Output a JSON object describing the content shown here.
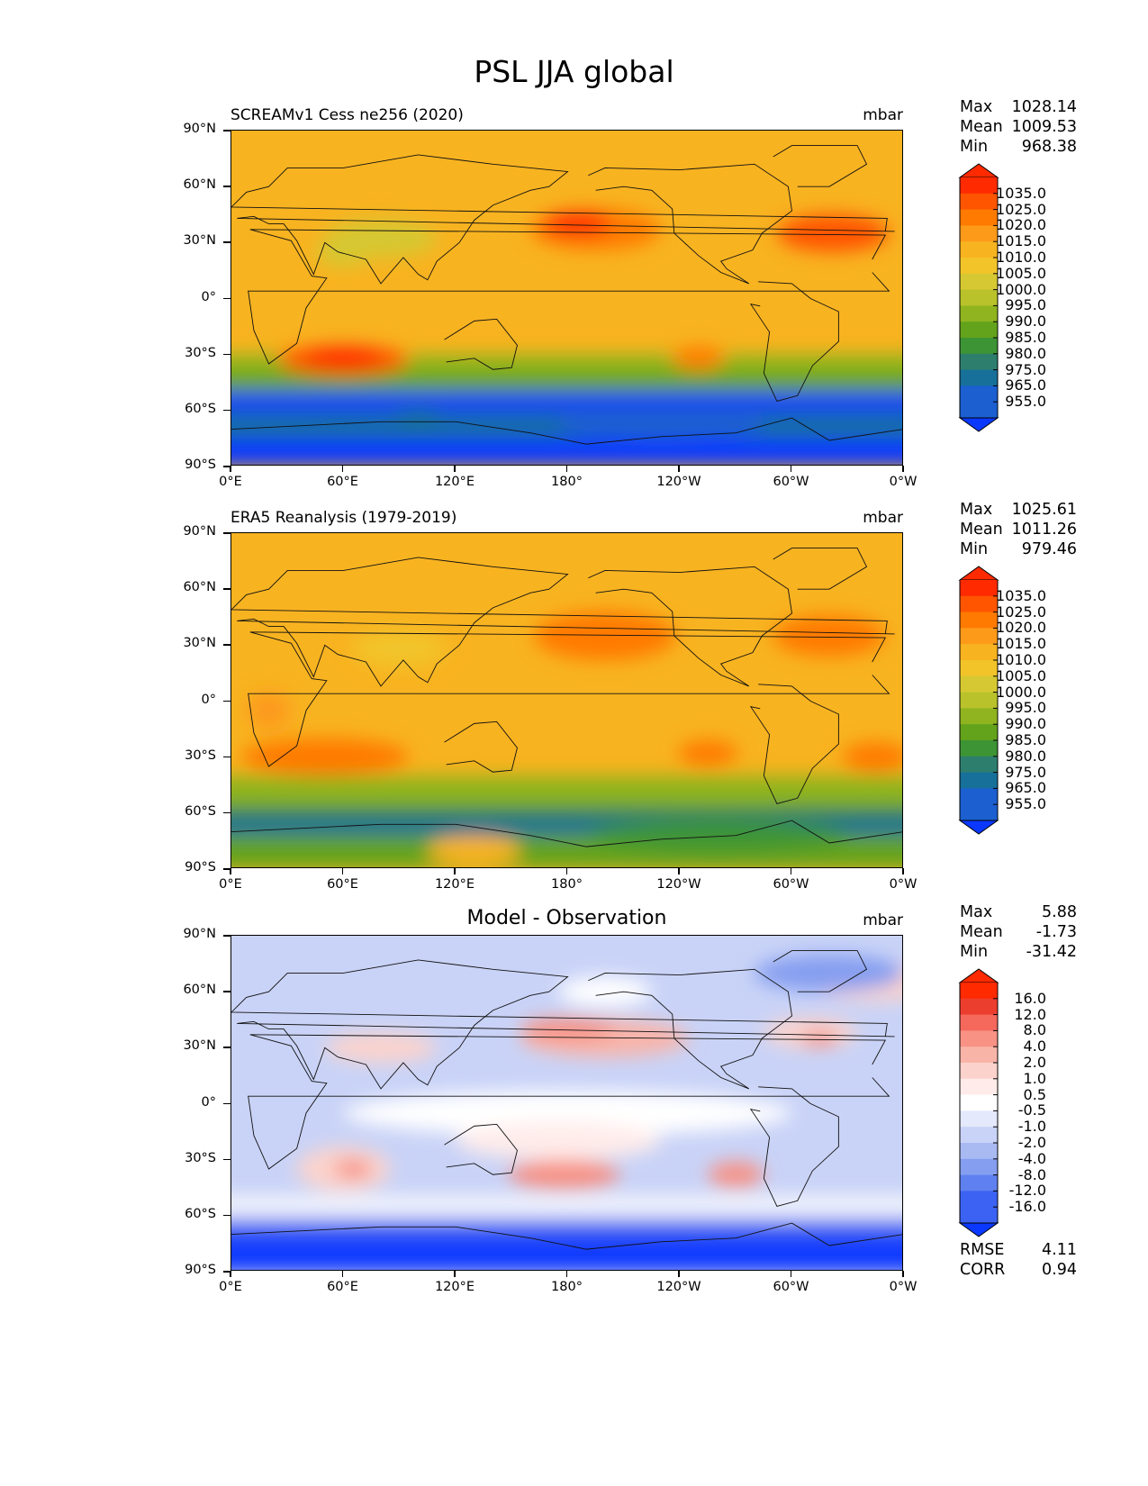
{
  "chart_data": {
    "type": "contour-map",
    "title": "PSL JJA global",
    "x_ticks": [
      "0°E",
      "60°E",
      "120°E",
      "180°",
      "120°W",
      "60°W",
      "0°W"
    ],
    "y_ticks": [
      "90°N",
      "60°N",
      "30°N",
      "0°",
      "30°S",
      "60°S",
      "90°S"
    ],
    "panels": [
      {
        "subtitle": "SCREAMv1 Cess ne256 (2020)",
        "units": "mbar",
        "stats": {
          "max_label": "Max",
          "max": "1028.14",
          "mean_label": "Mean",
          "mean": "1009.53",
          "min_label": "Min",
          "min": "968.38"
        },
        "colorbar_levels": [
          "1035.0",
          "1025.0",
          "1020.0",
          "1015.0",
          "1010.0",
          "1005.0",
          "1000.0",
          "995.0",
          "990.0",
          "985.0",
          "980.0",
          "975.0",
          "965.0",
          "955.0"
        ]
      },
      {
        "subtitle": "ERA5 Reanalysis (1979-2019)",
        "units": "mbar",
        "stats": {
          "max_label": "Max",
          "max": "1025.61",
          "mean_label": "Mean",
          "mean": "1011.26",
          "min_label": "Min",
          "min": "979.46"
        },
        "colorbar_levels": [
          "1035.0",
          "1025.0",
          "1020.0",
          "1015.0",
          "1010.0",
          "1005.0",
          "1000.0",
          "995.0",
          "990.0",
          "985.0",
          "980.0",
          "975.0",
          "965.0",
          "955.0"
        ]
      },
      {
        "subtitle": "Model - Observation",
        "units": "mbar",
        "stats": {
          "max_label": "Max",
          "max": "5.88",
          "mean_label": "Mean",
          "mean": "-1.73",
          "min_label": "Min",
          "min": "-31.42"
        },
        "colorbar_levels": [
          "16.0",
          "12.0",
          "8.0",
          "4.0",
          "2.0",
          "1.0",
          "0.5",
          "-0.5",
          "-1.0",
          "-2.0",
          "-4.0",
          "-8.0",
          "-12.0",
          "-16.0"
        ],
        "metrics": {
          "rmse_label": "RMSE",
          "rmse": "4.11",
          "corr_label": "CORR",
          "corr": "0.94"
        }
      }
    ]
  },
  "colors": {
    "abs_scale": [
      "#ff2a00",
      "#ff5500",
      "#ff7a00",
      "#fd9a1a",
      "#f8b320",
      "#f2c42a",
      "#d6c832",
      "#b9c22b",
      "#8fb41f",
      "#63a31c",
      "#3c9434",
      "#2e7e6e",
      "#17709a",
      "#1b5fd0",
      "#0a38ff"
    ],
    "diff_scale": [
      "#ff2a00",
      "#ec3e2e",
      "#f5685c",
      "#f79285",
      "#f9b4a8",
      "#fcd3cc",
      "#ffecea",
      "#ffffff",
      "#e4e9fb",
      "#c9d3f7",
      "#a9baf3",
      "#859ef0",
      "#5f80ef",
      "#3b62f2",
      "#0a38ff"
    ]
  }
}
